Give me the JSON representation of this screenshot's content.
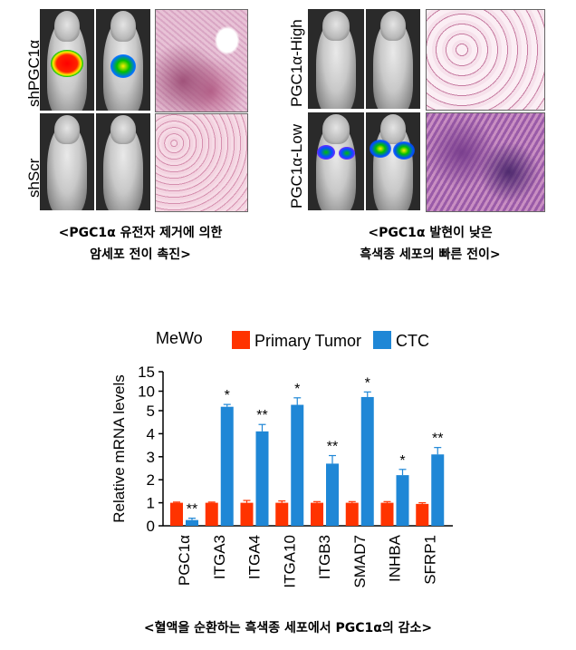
{
  "panels": {
    "left": {
      "row1_label": "shPGC1α",
      "row2_label": "shScr",
      "caption_line1": "<PGC1α 유전자 제거에 의한",
      "caption_line2": "암세포 전이 촉진>"
    },
    "right": {
      "row1_label": "PGC1α-High",
      "row2_label": "PGC1α-Low",
      "caption_line1": "<PGC1α 발현이 낮은",
      "caption_line2": "흑색종 세포의 빠른 전이>"
    }
  },
  "bottom_caption": "<혈액을 순환하는 흑색종 세포에서 PGC1α의 감소>",
  "colors": {
    "primary": "#ff3300",
    "ctc": "#1f87d6"
  },
  "chart_data": {
    "type": "bar",
    "title": "MeWo",
    "ylabel": "Relative mRNA levels",
    "xlabel": "",
    "categories": [
      "PGC1α",
      "ITGA3",
      "ITGA4",
      "ITGA10",
      "ITGB3",
      "SMAD7",
      "INHBA",
      "SFRP1"
    ],
    "series": [
      {
        "name": "Primary Tumor",
        "color": "#ff3300",
        "values": [
          1,
          1,
          1,
          1,
          1,
          1,
          1,
          0.95
        ],
        "errors": [
          0.03,
          0.03,
          0.1,
          0.08,
          0.05,
          0.05,
          0.05,
          0.05
        ]
      },
      {
        "name": "CTC",
        "color": "#1f87d6",
        "values": [
          0.25,
          6.0,
          4.1,
          6.5,
          2.7,
          8.5,
          2.2,
          3.1
        ],
        "errors": [
          0.08,
          0.6,
          0.3,
          1.8,
          0.35,
          1.3,
          0.25,
          0.3
        ],
        "significance": [
          "**",
          "*",
          "**",
          "*",
          "**",
          "*",
          "*",
          "**"
        ]
      }
    ],
    "y_ticks": [
      0,
      1,
      2,
      3,
      4,
      5,
      10,
      15
    ],
    "y_axis": "broken: linear 0-5 below, compressed 5-15 above",
    "ylim": [
      0,
      15
    ],
    "grid": false,
    "legend": "top"
  }
}
